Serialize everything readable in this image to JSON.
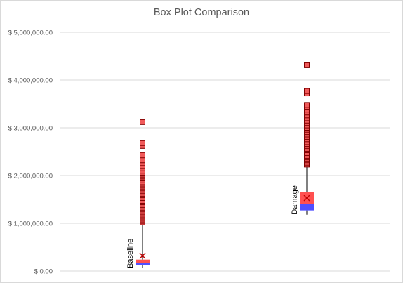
{
  "chart_data": {
    "type": "box",
    "title": "Box Plot Comparison",
    "xlabel": "",
    "ylabel": "",
    "ylim": [
      0,
      5000000
    ],
    "yticks": [
      {
        "value": 0,
        "label": "$ 0.00"
      },
      {
        "value": 1000000,
        "label": "$ 1,000,000.00"
      },
      {
        "value": 2000000,
        "label": "$ 2,000,000.00"
      },
      {
        "value": 3000000,
        "label": "$ 3,000,000.00"
      },
      {
        "value": 4000000,
        "label": "$ 4,000,000.00"
      },
      {
        "value": 5000000,
        "label": "$ 5,000,000.00"
      }
    ],
    "grid": true,
    "legend": "none",
    "boxes": [
      {
        "name": "Baseline",
        "whisker_low": 60000,
        "q1": 120000,
        "median": 175000,
        "q3": 240000,
        "whisker_high": 1000000,
        "mean": 320000,
        "outliers": [
          1020000,
          1050000,
          1080000,
          1110000,
          1140000,
          1170000,
          1200000,
          1230000,
          1260000,
          1290000,
          1320000,
          1350000,
          1380000,
          1410000,
          1440000,
          1470000,
          1500000,
          1530000,
          1560000,
          1590000,
          1620000,
          1650000,
          1680000,
          1710000,
          1740000,
          1770000,
          1800000,
          1830000,
          1860000,
          1900000,
          1940000,
          1980000,
          2020000,
          2060000,
          2100000,
          2150000,
          2200000,
          2260000,
          2320000,
          2400000,
          2430000,
          2620000,
          2680000,
          3120000
        ]
      },
      {
        "name": "Damage",
        "whisker_low": 1180000,
        "q1": 1270000,
        "median": 1400000,
        "q3": 1650000,
        "whisker_high": 2200000,
        "mean": 1530000,
        "outliers": [
          2230000,
          2260000,
          2290000,
          2320000,
          2350000,
          2380000,
          2410000,
          2440000,
          2470000,
          2500000,
          2530000,
          2560000,
          2590000,
          2620000,
          2660000,
          2700000,
          2760000,
          2810000,
          2860000,
          2910000,
          2960000,
          3000000,
          3050000,
          3100000,
          3150000,
          3200000,
          3260000,
          3320000,
          3380000,
          3440000,
          3480000,
          3720000,
          3770000,
          4310000
        ]
      }
    ],
    "colors": {
      "box_upper": "#ff5050",
      "box_lower": "#4f4fff",
      "outlier_fill": "#f05a5a",
      "outlier_stroke": "#7f0000",
      "mean_marker": "#c00000",
      "whisker": "#000000",
      "grid": "#d9d9d9",
      "axis_text": "#595959"
    }
  }
}
